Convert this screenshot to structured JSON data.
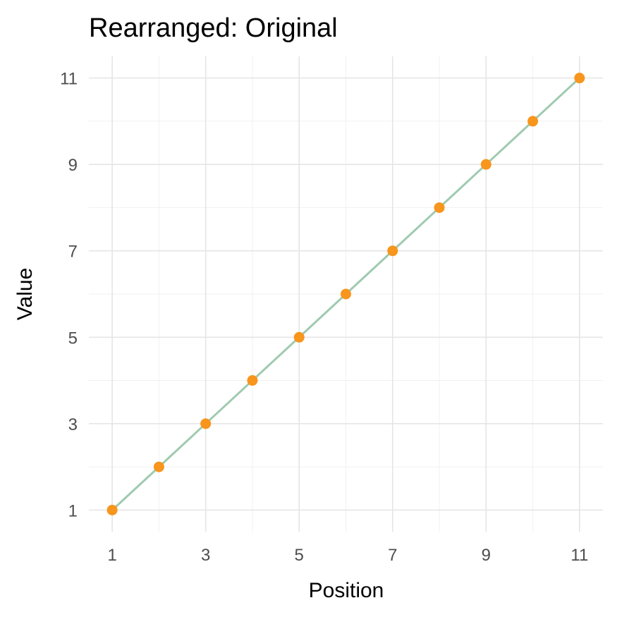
{
  "chart_data": {
    "type": "line",
    "title": "Rearranged: Original",
    "xlabel": "Position",
    "ylabel": "Value",
    "x": [
      1,
      2,
      3,
      4,
      5,
      6,
      7,
      8,
      9,
      10,
      11
    ],
    "series": [
      {
        "name": "Original",
        "values": [
          1,
          2,
          3,
          4,
          5,
          6,
          7,
          8,
          9,
          10,
          11
        ]
      }
    ],
    "xlim": [
      0.5,
      11.5
    ],
    "ylim": [
      0.5,
      11.5
    ],
    "x_ticks": [
      1,
      3,
      5,
      7,
      9,
      11
    ],
    "y_ticks": [
      1,
      3,
      5,
      7,
      9,
      11
    ],
    "x_tick_labels": [
      "1",
      "3",
      "5",
      "7",
      "9",
      "11"
    ],
    "y_tick_labels": [
      "1",
      "3",
      "5",
      "7",
      "9",
      "11"
    ],
    "grid": true,
    "legend": "none",
    "colors": {
      "line": "#9fcab0",
      "point": "#f7951d",
      "grid_major": "#e5e5e5",
      "grid_minor": "#f1f1f1",
      "background": "#ffffff"
    }
  }
}
